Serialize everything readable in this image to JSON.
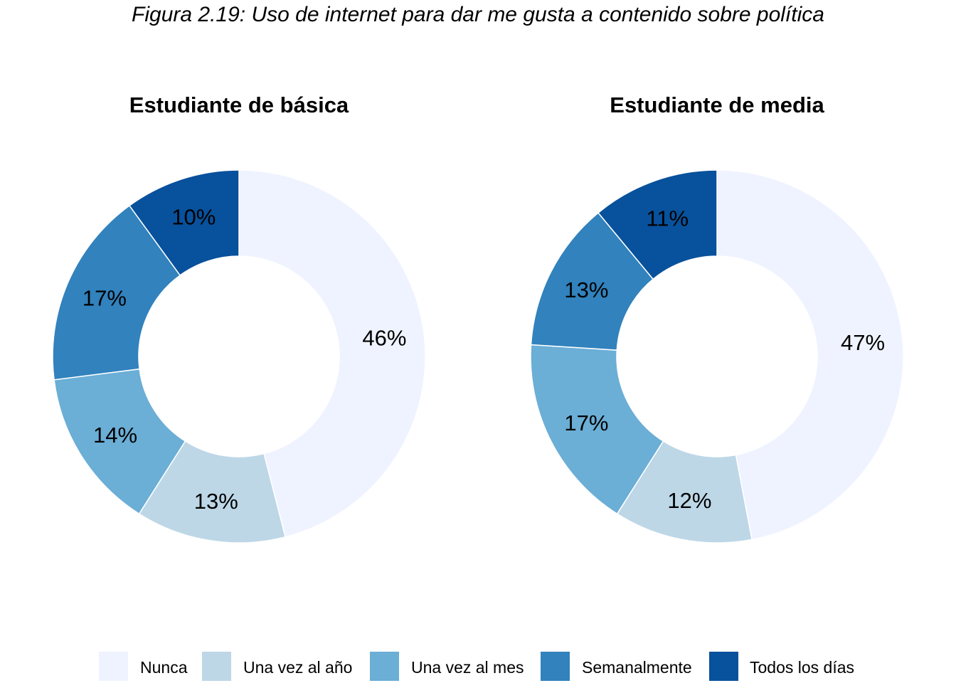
{
  "figure_title": "Figura 2.19: Uso de internet para dar me gusta a contenido sobre política",
  "colors": {
    "Nunca": "#eff3ff",
    "Una vez al año": "#bdd7e7",
    "Una vez al mes": "#6baed6",
    "Semanalmente": "#3182bd",
    "Todos los días": "#08519c"
  },
  "chart_data": [
    {
      "type": "pie",
      "title": "Estudiante de básica",
      "categories": [
        "Nunca",
        "Una vez al año",
        "Una vez al mes",
        "Semanalmente",
        "Todos los días"
      ],
      "values": [
        46,
        13,
        14,
        17,
        10
      ],
      "labels": [
        "46%",
        "13%",
        "14%",
        "17%",
        "10%"
      ]
    },
    {
      "type": "pie",
      "title": "Estudiante de media",
      "categories": [
        "Nunca",
        "Una vez al año",
        "Una vez al mes",
        "Semanalmente",
        "Todos los días"
      ],
      "values": [
        47,
        12,
        17,
        13,
        11
      ],
      "labels": [
        "47%",
        "12%",
        "17%",
        "13%",
        "11%"
      ]
    }
  ],
  "legend": {
    "position": "bottom",
    "items": [
      "Nunca",
      "Una vez al año",
      "Una vez al mes",
      "Semanalmente",
      "Todos los días"
    ]
  }
}
